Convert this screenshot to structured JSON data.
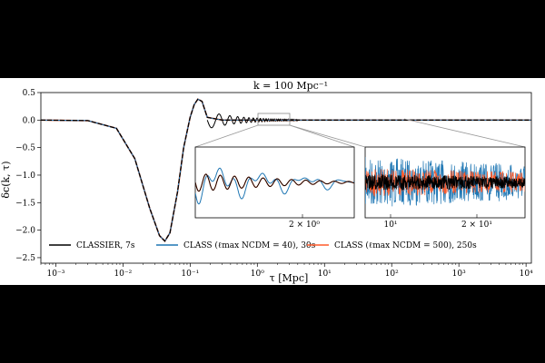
{
  "chart_data": {
    "type": "line",
    "title": "k = 100 Mpc⁻¹",
    "xlabel": "τ [Mpc]",
    "ylabel": "δc(k, τ)",
    "xscale": "log",
    "xlim": [
      0.0006,
      12000
    ],
    "ylim": [
      -2.6,
      0.5
    ],
    "x_ticks": [
      "10⁻³",
      "10⁻²",
      "10⁻¹",
      "10⁰",
      "10¹",
      "10²",
      "10³",
      "10⁴"
    ],
    "y_ticks": [
      "0.5",
      "0.0",
      "−0.5",
      "−1.0",
      "−1.5",
      "−2.0",
      "−2.5"
    ],
    "series": [
      {
        "name": "CLASSIER, 7s",
        "color": "#000000"
      },
      {
        "name": "CLASS (ℓmax NCDM = 40), 30s",
        "color": "#1f77b4"
      },
      {
        "name": "CLASS (ℓmax NCDM = 500), 250s",
        "color": "#ff5a2a"
      }
    ],
    "curve_points": {
      "x": [
        0.0006,
        0.003,
        0.008,
        0.015,
        0.025,
        0.035,
        0.042,
        0.05,
        0.065,
        0.08,
        0.1,
        0.115,
        0.13,
        0.15,
        0.18
      ],
      "y": [
        0.0,
        -0.01,
        -0.15,
        -0.7,
        -1.6,
        -2.1,
        -2.2,
        -2.05,
        -1.3,
        -0.5,
        0.05,
        0.28,
        0.38,
        0.34,
        0.05
      ]
    },
    "insets": [
      {
        "tick_label": "2 × 10⁰"
      },
      {
        "tick_labels": [
          "10¹",
          "2 × 10¹"
        ]
      }
    ],
    "legend": "lower-left"
  }
}
